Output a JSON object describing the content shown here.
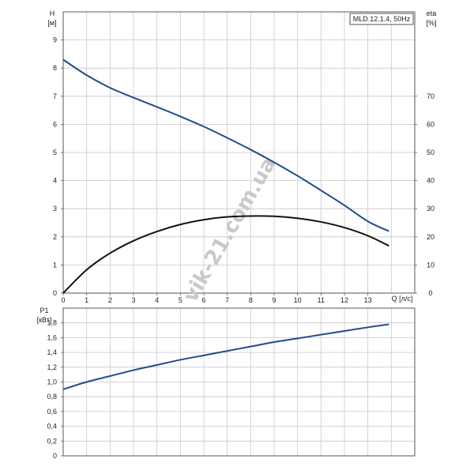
{
  "chart_data": [
    {
      "type": "line",
      "title": "MLD.12.1.4, 50Hz",
      "xlabel": "Q [л/с]",
      "ylabel": "H\n[м]",
      "y2label": "eta\n[%]",
      "xlim": [
        0,
        15
      ],
      "ylim": [
        0,
        10
      ],
      "y2lim": [
        0,
        100
      ],
      "x_ticks": [
        "0",
        "1",
        "2",
        "3",
        "4",
        "5",
        "6",
        "7",
        "8",
        "9",
        "10",
        "11",
        "12",
        "13"
      ],
      "y_ticks": [
        "0",
        "1",
        "2",
        "3",
        "4",
        "5",
        "6",
        "7",
        "8",
        "9"
      ],
      "y2_ticks": [
        "0",
        "10",
        "20",
        "30",
        "40",
        "50",
        "60",
        "70"
      ],
      "grid": true,
      "series": [
        {
          "axis": "left",
          "color": "#1f4e8c",
          "x": [
            0,
            1,
            2,
            3,
            4,
            5,
            6,
            7,
            8,
            9,
            10,
            11,
            12,
            13,
            13.9
          ],
          "y": [
            8.3,
            7.75,
            7.3,
            6.95,
            6.62,
            6.28,
            5.92,
            5.52,
            5.1,
            4.65,
            4.17,
            3.65,
            3.12,
            2.55,
            2.2
          ]
        },
        {
          "axis": "right",
          "color": "#111111",
          "x": [
            0,
            1,
            2,
            3,
            4,
            5,
            6,
            7,
            8,
            9,
            10,
            11,
            12,
            13,
            13.9
          ],
          "y": [
            0,
            8.3,
            14.2,
            18.6,
            21.9,
            24.4,
            26.1,
            27.1,
            27.4,
            27.3,
            26.6,
            25.3,
            23.3,
            20.4,
            16.8
          ]
        }
      ]
    },
    {
      "type": "line",
      "ylabel": "P1\n[кВт]",
      "xlim": [
        0,
        15
      ],
      "ylim": [
        0,
        2.0
      ],
      "x_ticks": [],
      "y_ticks": [
        "0",
        "0,2",
        "0,4",
        "0,6",
        "0,8",
        "1,0",
        "1,2",
        "1,4",
        "1,6",
        "1,8"
      ],
      "grid": true,
      "series": [
        {
          "color": "#1f4e8c",
          "x": [
            0,
            1,
            2,
            3,
            4,
            5,
            6,
            7,
            8,
            9,
            10,
            11,
            12,
            13,
            13.9
          ],
          "y": [
            0.9,
            1.0,
            1.08,
            1.16,
            1.23,
            1.3,
            1.36,
            1.42,
            1.48,
            1.54,
            1.59,
            1.64,
            1.69,
            1.74,
            1.78
          ]
        }
      ]
    }
  ],
  "watermark": "vik-21.com.ua"
}
